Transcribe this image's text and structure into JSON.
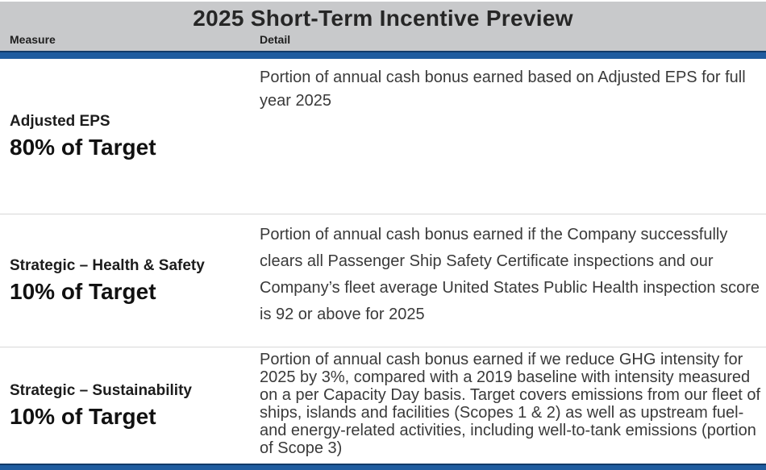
{
  "title": "2025 Short-Term Incentive Preview",
  "columns": {
    "measure_label": "Measure",
    "detail_label": "Detail"
  },
  "rows": [
    {
      "measure": "Adjusted EPS",
      "target": "80% of Target",
      "detail": "Portion of annual cash bonus earned based on Adjusted EPS for full year 2025"
    },
    {
      "measure": "Strategic – Health & Safety",
      "target": "10% of Target",
      "detail": "Portion of annual cash bonus earned if the Company successfully clears all Passenger Ship Safety Certificate inspections and our Company’s fleet average United States Public Health inspection score is 92 or above for 2025"
    },
    {
      "measure": "Strategic – Sustainability",
      "target": "10% of Target",
      "detail": "Portion of annual cash bonus earned if we reduce GHG intensity for 2025 by 3%, compared with a 2019 baseline with intensity measured on a per Capacity Day basis. Target covers emissions from our fleet of ships, islands and facilities (Scopes 1 & 2) as well as upstream fuel- and energy-related activities, including well-to-tank emissions (portion of Scope 3)"
    }
  ],
  "colors": {
    "header_bg": "#c8c9cb",
    "accent_blue": "#1f5c9f",
    "accent_blue_dark": "#123a68",
    "row_separator": "#d7d7d7",
    "body_text": "#3a3a3a",
    "title_text": "#262626"
  }
}
